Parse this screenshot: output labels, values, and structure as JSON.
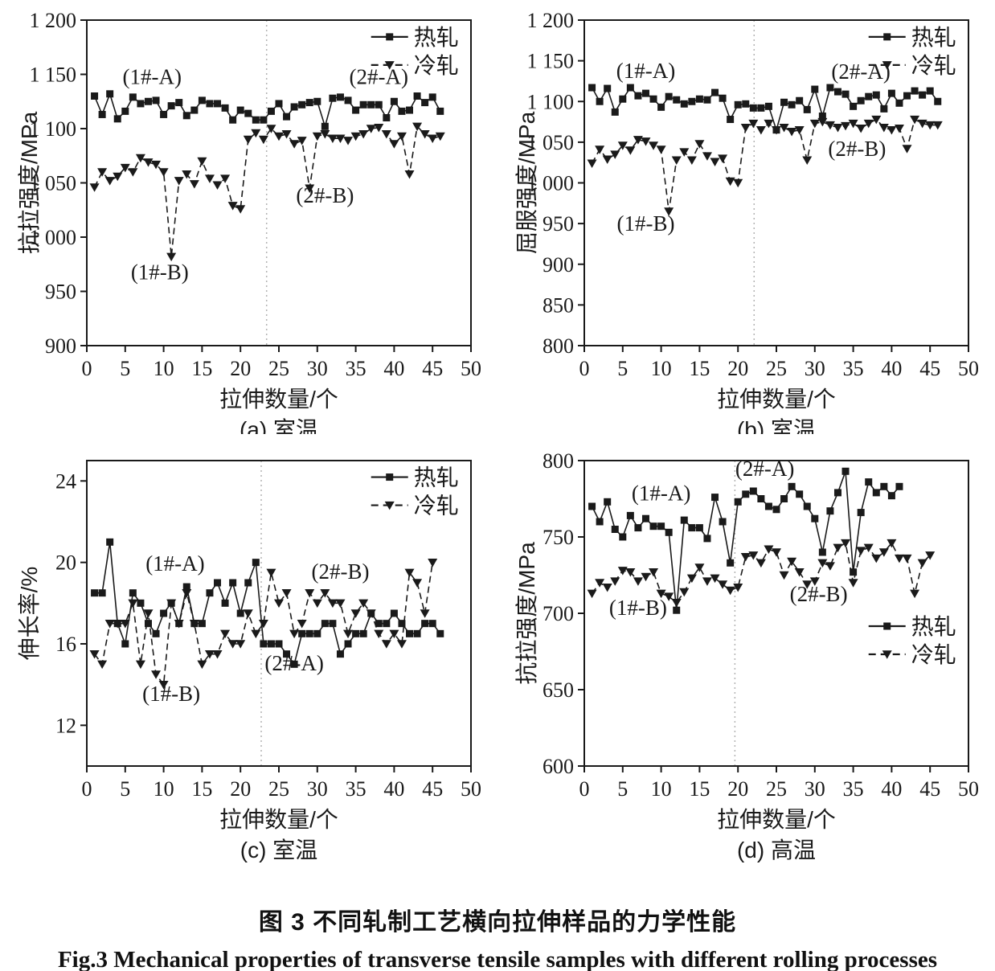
{
  "figure": {
    "title_cn": "图 3  不同轧制工艺横向拉伸样品的力学性能",
    "title_en": "Fig.3  Mechanical properties of transverse tensile samples with different rolling processes"
  },
  "ink_color": "#1a1a1a",
  "divider_color": "#b3b3b3",
  "chart_data": [
    {
      "id": "a",
      "type": "line",
      "caption": "(a) 室温",
      "xlabel": "拉伸数量/个",
      "ylabel": "抗拉强度/MPa",
      "xlim": [
        0,
        50
      ],
      "ylim": [
        900,
        1200
      ],
      "xticks": [
        0,
        5,
        10,
        15,
        20,
        25,
        30,
        35,
        40,
        45,
        50
      ],
      "yticks": [
        900,
        950,
        1000,
        1050,
        1100,
        1150,
        1200
      ],
      "ytick_labels": [
        "900",
        "950",
        "1 000",
        "1 050",
        "1 100",
        "1 150",
        "1 200"
      ],
      "grid": false,
      "divider_x": 23.4,
      "legend": {
        "fx": 0.74,
        "fy": 0.012
      },
      "annotations": [
        {
          "text": "(1#-A)",
          "x": 8.5,
          "y": 1141
        },
        {
          "text": "(2#-A)",
          "x": 38,
          "y": 1141
        },
        {
          "text": "(1#-B)",
          "x": 9.5,
          "y": 961
        },
        {
          "text": "(2#-B)",
          "x": 31,
          "y": 1032
        }
      ],
      "series": [
        {
          "name": "热轧",
          "marker": "square",
          "line": "solid",
          "x_start": 1,
          "values": [
            1130,
            1113,
            1132,
            1109,
            1116,
            1129,
            1123,
            1125,
            1126,
            1113,
            1121,
            1124,
            1112,
            1117,
            1126,
            1123,
            1123,
            1119,
            1108,
            1117,
            1114,
            1108,
            1108,
            1116,
            1123,
            1111,
            1120,
            1122,
            1124,
            1125,
            1102,
            1128,
            1129,
            1126,
            1117,
            1122,
            1122,
            1122,
            1110,
            1125,
            1116,
            1117,
            1130,
            1124,
            1129,
            1116
          ]
        },
        {
          "name": "冷轧",
          "marker": "triangle-down",
          "line": "dashed",
          "x_start": 1,
          "values": [
            1046,
            1060,
            1052,
            1056,
            1064,
            1060,
            1073,
            1069,
            1067,
            1060,
            982,
            1052,
            1058,
            1049,
            1070,
            1054,
            1048,
            1054,
            1029,
            1026,
            1090,
            1096,
            1090,
            1100,
            1093,
            1095,
            1086,
            1089,
            1045,
            1093,
            1095,
            1091,
            1091,
            1089,
            1093,
            1095,
            1100,
            1101,
            1095,
            1086,
            1093,
            1058,
            1102,
            1095,
            1091,
            1093
          ]
        }
      ]
    },
    {
      "id": "b",
      "type": "line",
      "caption": "(b) 室温",
      "xlabel": "拉伸数量/个",
      "ylabel": "屈服强度/MPa",
      "xlim": [
        0,
        50
      ],
      "ylim": [
        800,
        1200
      ],
      "xticks": [
        0,
        5,
        10,
        15,
        20,
        25,
        30,
        35,
        40,
        45,
        50
      ],
      "yticks": [
        800,
        850,
        900,
        950,
        1000,
        1050,
        1100,
        1150,
        1200
      ],
      "ytick_labels": [
        "800",
        "850",
        "900",
        "950",
        "1 000",
        "1 050",
        "1 100",
        "1 150",
        "1 200"
      ],
      "grid": false,
      "divider_x": 22.1,
      "legend": {
        "fx": 0.74,
        "fy": 0.012
      },
      "annotations": [
        {
          "text": "(1#-A)",
          "x": 8,
          "y": 1129
        },
        {
          "text": "(2#-A)",
          "x": 36,
          "y": 1128
        },
        {
          "text": "(1#-B)",
          "x": 8,
          "y": 941
        },
        {
          "text": "(2#-B)",
          "x": 35.5,
          "y": 1033
        }
      ],
      "series": [
        {
          "name": "热轧",
          "marker": "square",
          "line": "solid",
          "x_start": 1,
          "values": [
            1117,
            1100,
            1116,
            1087,
            1103,
            1117,
            1107,
            1110,
            1103,
            1093,
            1106,
            1102,
            1097,
            1100,
            1103,
            1102,
            1111,
            1104,
            1078,
            1096,
            1097,
            1092,
            1092,
            1094,
            1065,
            1099,
            1096,
            1101,
            1090,
            1115,
            1082,
            1117,
            1112,
            1109,
            1094,
            1101,
            1106,
            1108,
            1091,
            1110,
            1098,
            1107,
            1113,
            1108,
            1113,
            1100
          ]
        },
        {
          "name": "冷轧",
          "marker": "triangle-down",
          "line": "dashed",
          "x_start": 1,
          "values": [
            1024,
            1041,
            1029,
            1035,
            1046,
            1040,
            1053,
            1051,
            1046,
            1041,
            965,
            1028,
            1038,
            1028,
            1048,
            1033,
            1026,
            1030,
            1002,
            1000,
            1068,
            1073,
            1065,
            1073,
            1065,
            1068,
            1063,
            1065,
            1028,
            1073,
            1075,
            1071,
            1068,
            1070,
            1073,
            1067,
            1073,
            1078,
            1068,
            1065,
            1067,
            1042,
            1078,
            1073,
            1071,
            1071
          ]
        }
      ]
    },
    {
      "id": "c",
      "type": "line",
      "caption": "(c) 室温",
      "xlabel": "拉伸数量/个",
      "ylabel": "伸长率/%",
      "xlim": [
        0,
        50
      ],
      "ylim": [
        10,
        25
      ],
      "xticks": [
        0,
        5,
        10,
        15,
        20,
        25,
        30,
        35,
        40,
        45,
        50
      ],
      "yticks": [
        12,
        16,
        20,
        24
      ],
      "ytick_labels": [
        "12",
        "16",
        "20",
        "24"
      ],
      "grid": false,
      "divider_x": 22.7,
      "legend": {
        "fx": 0.74,
        "fy": 0.012
      },
      "annotations": [
        {
          "text": "(1#-A)",
          "x": 11.5,
          "y": 19.6
        },
        {
          "text": "(2#-B)",
          "x": 33,
          "y": 19.2
        },
        {
          "text": "(1#-B)",
          "x": 11,
          "y": 13.2
        },
        {
          "text": "(2#-A)",
          "x": 27,
          "y": 14.7
        }
      ],
      "series": [
        {
          "name": "热轧",
          "marker": "square",
          "line": "solid",
          "x_start": 1,
          "values": [
            18.5,
            18.5,
            21,
            17,
            16,
            18.5,
            18,
            17,
            16.5,
            17.5,
            18,
            17,
            18.8,
            17,
            17,
            18.5,
            19,
            18,
            19,
            17.5,
            19,
            20,
            16,
            16,
            16,
            15.5,
            15,
            16.5,
            16.5,
            16.5,
            17,
            17,
            15.5,
            16,
            16.5,
            16.5,
            17.5,
            17,
            17,
            17.5,
            17,
            16.5,
            16.5,
            17,
            17,
            16.5
          ]
        },
        {
          "name": "冷轧",
          "marker": "triangle-down",
          "line": "dashed",
          "x_start": 1,
          "values": [
            15.5,
            15,
            17,
            17,
            17,
            18,
            15,
            17.5,
            14.5,
            14,
            18,
            17,
            18.5,
            17,
            15,
            15.5,
            15.5,
            16.5,
            16,
            16,
            17.5,
            16.5,
            17,
            19.5,
            18,
            18.5,
            16.5,
            17,
            18.5,
            18,
            18.5,
            18,
            18,
            16.5,
            17.5,
            18,
            17.5,
            16.5,
            16,
            16.5,
            16,
            19.5,
            19,
            17.5,
            20
          ]
        }
      ]
    },
    {
      "id": "d",
      "type": "line",
      "caption": "(d) 高温",
      "xlabel": "拉伸数量/个",
      "ylabel": "抗拉强度/MPa",
      "xlim": [
        0,
        50
      ],
      "ylim": [
        600,
        800
      ],
      "xticks": [
        0,
        5,
        10,
        15,
        20,
        25,
        30,
        35,
        40,
        45,
        50
      ],
      "yticks": [
        600,
        650,
        700,
        750,
        800
      ],
      "ytick_labels": [
        "600",
        "650",
        "700",
        "750",
        "800"
      ],
      "grid": false,
      "divider_x": 19.6,
      "legend": {
        "fx": 0.74,
        "fy": 0.5
      },
      "annotations": [
        {
          "text": "(1#-A)",
          "x": 10,
          "y": 774
        },
        {
          "text": "(2#-A)",
          "x": 23.5,
          "y": 790
        },
        {
          "text": "(1#-B)",
          "x": 7,
          "y": 699
        },
        {
          "text": "(2#-B)",
          "x": 30.5,
          "y": 708
        }
      ],
      "series": [
        {
          "name": "热轧",
          "marker": "square",
          "line": "solid",
          "x_start": 1,
          "values": [
            770,
            760,
            773,
            755,
            750,
            764,
            756,
            762,
            757,
            757,
            753,
            702,
            761,
            756,
            756,
            749,
            776,
            760,
            733,
            773,
            778,
            780,
            775,
            770,
            768,
            775,
            783,
            778,
            770,
            762,
            740,
            767,
            779,
            793,
            727,
            766,
            786,
            779,
            783,
            777,
            783
          ]
        },
        {
          "name": "冷轧",
          "marker": "triangle-down",
          "line": "dashed",
          "x_start": 1,
          "values": [
            713,
            720,
            717,
            721,
            728,
            727,
            721,
            724,
            727,
            713,
            711,
            707,
            714,
            723,
            730,
            721,
            723,
            719,
            715,
            717,
            737,
            738,
            733,
            742,
            740,
            725,
            734,
            727,
            719,
            721,
            733,
            731,
            743,
            746,
            720,
            741,
            743,
            736,
            740,
            746,
            736,
            736,
            713,
            733,
            738
          ]
        }
      ]
    }
  ]
}
